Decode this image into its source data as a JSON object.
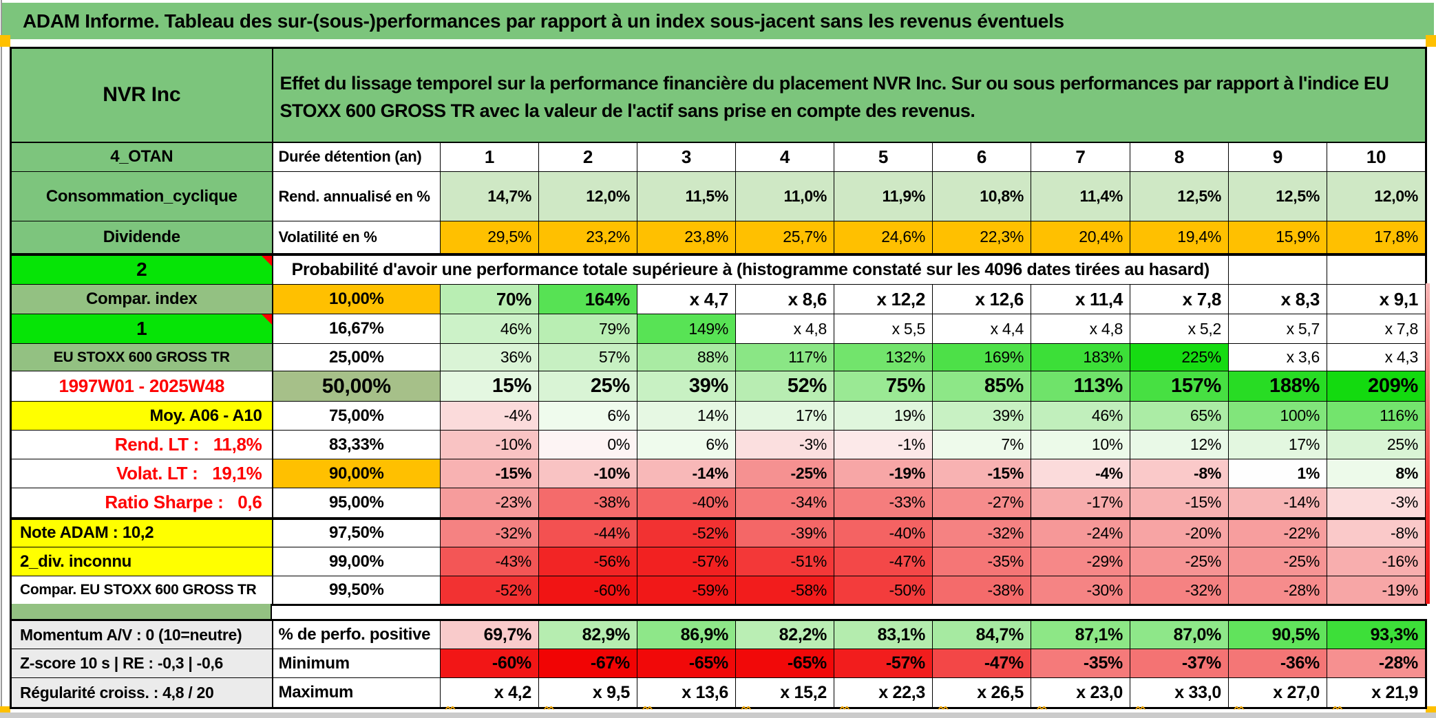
{
  "title": "ADAM Informe. Tableau des sur-(sous-)performances par rapport à un index sous-jacent sans les revenus éventuels",
  "header": {
    "asset_name": "NVR Inc",
    "description": "Effet du lissage temporel sur la performance financière du placement NVR Inc. Sur ou sous performances par rapport à l'indice EU STOXX 600 GROSS TR avec la valeur de l'actif sans prise en compte des revenus."
  },
  "colors": {
    "header_green": "#7cc57c",
    "label_green": "#93c182",
    "bright_green": "#06e406",
    "green_50": "#a6c089",
    "orange": "#ffc000",
    "yellow": "#ffff00",
    "gray_label": "#ebebeb",
    "red_text": "#fe0000",
    "marker_orange": "#ffc000"
  },
  "rows": [
    {
      "left": {
        "text": "4_OTAN",
        "bg": "#7dc57d"
      },
      "head": {
        "text": "Durée détention (an)",
        "align": "left"
      },
      "values": [
        "1",
        "2",
        "3",
        "4",
        "5",
        "6",
        "7",
        "8",
        "9",
        "10"
      ],
      "bgs": [
        "#ffffff",
        "#ffffff",
        "#ffffff",
        "#ffffff",
        "#ffffff",
        "#ffffff",
        "#ffffff",
        "#ffffff",
        "#ffffff",
        "#ffffff"
      ],
      "bold": true
    },
    {
      "left": {
        "text": "Consommation_cyclique",
        "bg": "#7dc57d"
      },
      "head": {
        "text": "Rend. annualisé en %",
        "align": "left"
      },
      "values": [
        "14,7%",
        "12,0%",
        "11,5%",
        "11,0%",
        "11,9%",
        "10,8%",
        "11,4%",
        "12,5%",
        "12,5%",
        "12,0%"
      ],
      "bgs": [
        "#cfe8c5",
        "#cfe8c5",
        "#cfe8c5",
        "#cfe8c5",
        "#cfe8c5",
        "#cfe8c5",
        "#cfe8c5",
        "#cfe8c5",
        "#cfe8c5",
        "#cfe8c5"
      ],
      "bold": true
    },
    {
      "left": {
        "text": "Dividende",
        "bg": "#7dc57d"
      },
      "head": {
        "text": "Volatilité en %",
        "align": "left"
      },
      "values": [
        "29,5%",
        "23,2%",
        "23,8%",
        "25,7%",
        "24,6%",
        "22,3%",
        "20,4%",
        "19,4%",
        "15,9%",
        "17,8%"
      ],
      "bgs": [
        "#ffc000",
        "#ffc000",
        "#ffc000",
        "#ffc000",
        "#ffc000",
        "#ffc000",
        "#ffc000",
        "#ffc000",
        "#ffc000",
        "#ffc000"
      ],
      "bold": false
    },
    {
      "left": {
        "text": "2",
        "bg": "#06e406",
        "corner": true
      },
      "note": "Probabilité d'avoir une performance totale supérieure à (histogramme constaté sur les 4096 dates tirées au hasard)"
    },
    {
      "left": {
        "text": "Compar. index",
        "bg": "#93c182"
      },
      "head": {
        "text": "10,00%",
        "bg": "#ffc000"
      },
      "values": [
        "70%",
        "164%",
        "x 4,7",
        "x 8,6",
        "x 12,2",
        "x 12,6",
        "x 11,4",
        "x 7,8",
        "x 8,3",
        "x 9,1"
      ],
      "bgs": [
        "#b9eeb3",
        "#57e254",
        "#ffffff",
        "#ffffff",
        "#ffffff",
        "#ffffff",
        "#ffffff",
        "#ffffff",
        "#ffffff",
        "#ffffff"
      ],
      "bold": true
    },
    {
      "left": {
        "text": "1",
        "bg": "#06e406",
        "corner": true
      },
      "head": {
        "text": "16,67%"
      },
      "values": [
        "46%",
        "79%",
        "149%",
        "x 4,8",
        "x 5,5",
        "x 4,4",
        "x 4,8",
        "x 5,2",
        "x 5,7",
        "x 7,8"
      ],
      "bgs": [
        "#ccf2c8",
        "#b9eeb3",
        "#58e355",
        "#ffffff",
        "#ffffff",
        "#ffffff",
        "#ffffff",
        "#ffffff",
        "#ffffff",
        "#ffffff"
      ],
      "bold": false
    },
    {
      "left": {
        "text": "EU STOXX 600 GROSS TR",
        "bg": "#93c182",
        "small": true
      },
      "head": {
        "text": "25,00%"
      },
      "values": [
        "36%",
        "57%",
        "88%",
        "117%",
        "132%",
        "169%",
        "183%",
        "225%",
        "x 3,6",
        "x 4,3"
      ],
      "bgs": [
        "#daf4d6",
        "#c7f0c2",
        "#a9eba3",
        "#8ae685",
        "#72e46c",
        "#4de048",
        "#3cdf38",
        "#16db12",
        "#ffffff",
        "#ffffff"
      ],
      "bold": false
    },
    {
      "left": {
        "text": "1997W01 - 2025W48",
        "bg": "#ffffff",
        "color": "#fe0000"
      },
      "head": {
        "text": "50,00%",
        "bg": "#a6c089",
        "big": true
      },
      "values": [
        "15%",
        "25%",
        "39%",
        "52%",
        "75%",
        "85%",
        "113%",
        "157%",
        "188%",
        "209%"
      ],
      "bgs": [
        "#e4f7e1",
        "#d9f4d5",
        "#c8f1c3",
        "#b8edb2",
        "#9ae994",
        "#8de787",
        "#6fe36a",
        "#47e042",
        "#28dc24",
        "#13da0f"
      ],
      "bold": true
    },
    {
      "left": {
        "text": "Moy. A06 - A10",
        "bg": "#ffff00",
        "align": "right"
      },
      "head": {
        "text": "75,00%"
      },
      "values": [
        "-4%",
        "6%",
        "14%",
        "17%",
        "19%",
        "39%",
        "46%",
        "65%",
        "100%",
        "116%"
      ],
      "bgs": [
        "#fbdbdb",
        "#effbed",
        "#e6f8e3",
        "#e3f7e0",
        "#e0f6dd",
        "#c8f1c3",
        "#c1efbc",
        "#abeca5",
        "#81e57b",
        "#73e46d"
      ],
      "bold": false
    },
    {
      "left": {
        "text": "Rend. LT :   11,8%",
        "bg": "#ffffff",
        "color": "#fe0000",
        "align": "right"
      },
      "head": {
        "text": "83,33%"
      },
      "values": [
        "-10%",
        "0%",
        "6%",
        "-3%",
        "-1%",
        "7%",
        "10%",
        "12%",
        "17%",
        "25%"
      ],
      "bgs": [
        "#f9c3c3",
        "#fdf4f4",
        "#effbed",
        "#fbdfdf",
        "#fce9e9",
        "#eefaeb",
        "#ecfae9",
        "#e9f9e7",
        "#e3f7e0",
        "#d9f4d5"
      ],
      "bold": false
    },
    {
      "left": {
        "text": "Volat. LT :   19,1%",
        "bg": "#ffffff",
        "color": "#fe0000",
        "align": "right"
      },
      "head": {
        "text": "90,00%",
        "bg": "#ffc000"
      },
      "values": [
        "-15%",
        "-10%",
        "-14%",
        "-25%",
        "-19%",
        "-15%",
        "-4%",
        "-8%",
        "1%",
        "8%"
      ],
      "bgs": [
        "#f8b2b2",
        "#f9c3c3",
        "#f8b8b8",
        "#f59191",
        "#f7a6a6",
        "#f8b2b2",
        "#fbdbdb",
        "#fac9c9",
        "#fefefe",
        "#edfaea"
      ],
      "bold": true
    },
    {
      "left": {
        "text": "Ratio Sharpe :   0,6",
        "bg": "#ffffff",
        "color": "#fe0000",
        "align": "right"
      },
      "head": {
        "text": "95,00%"
      },
      "values": [
        "-23%",
        "-38%",
        "-40%",
        "-34%",
        "-33%",
        "-27%",
        "-17%",
        "-15%",
        "-14%",
        "-3%"
      ],
      "bgs": [
        "#f69c9c",
        "#f46b6b",
        "#f46363",
        "#f57979",
        "#f57d7d",
        "#f68c8c",
        "#f7abab",
        "#f8b2b2",
        "#f8b6b6",
        "#fbdcdc"
      ],
      "bold": false
    },
    {
      "left": {
        "text": "Note ADAM : 10,2",
        "bg": "#ffff00",
        "align": "left"
      },
      "head": {
        "text": "97,50%"
      },
      "values": [
        "-32%",
        "-44%",
        "-52%",
        "-39%",
        "-40%",
        "-32%",
        "-24%",
        "-20%",
        "-22%",
        "-8%"
      ],
      "bgs": [
        "#f58282",
        "#f35151",
        "#f23232",
        "#f46767",
        "#f46363",
        "#f58282",
        "#f69898",
        "#f7a4a4",
        "#f79e9e",
        "#fac9c9"
      ],
      "bold": false
    },
    {
      "left": {
        "text": "2_div. inconnu",
        "bg": "#ffff00",
        "align": "left"
      },
      "head": {
        "text": "99,00%"
      },
      "values": [
        "-43%",
        "-56%",
        "-57%",
        "-51%",
        "-47%",
        "-35%",
        "-29%",
        "-25%",
        "-25%",
        "-16%"
      ],
      "bgs": [
        "#f35656",
        "#f22525",
        "#f22121",
        "#f33838",
        "#f34848",
        "#f57676",
        "#f68888",
        "#f69494",
        "#f69494",
        "#f8aeae"
      ],
      "bold": false
    },
    {
      "left": {
        "text": "Compar. EU STOXX 600 GROSS TR",
        "bg": "#ffffff",
        "align": "left",
        "small": true
      },
      "head": {
        "text": "99,50%"
      },
      "values": [
        "-52%",
        "-60%",
        "-59%",
        "-58%",
        "-50%",
        "-38%",
        "-30%",
        "-32%",
        "-28%",
        "-19%"
      ],
      "bgs": [
        "#f23232",
        "#f11414",
        "#f11818",
        "#f21c1c",
        "#f33c3c",
        "#f46b6b",
        "#f58484",
        "#f58282",
        "#f68c8c",
        "#f7a6a6"
      ],
      "bold": false
    },
    {
      "left": {
        "text": "Momentum A/V : 0 (10=neutre)",
        "bg": "#ebebeb",
        "align": "left"
      },
      "head": {
        "text": "% de perfo. positive",
        "align": "left"
      },
      "values": [
        "69,7%",
        "82,9%",
        "86,9%",
        "82,2%",
        "83,1%",
        "84,7%",
        "87,1%",
        "87,0%",
        "90,5%",
        "93,3%"
      ],
      "bgs": [
        "#f9cbcb",
        "#b6edb0",
        "#8ee789",
        "#baeeb4",
        "#b4ecae",
        "#a6eaa1",
        "#8de786",
        "#8ee789",
        "#61e35c",
        "#3ddf39"
      ],
      "bold": true
    },
    {
      "left": {
        "text": "Z-score 10 s | RE : -0,3 | -0,6",
        "bg": "#ebebeb",
        "align": "left"
      },
      "head": {
        "text": "Minimum",
        "align": "left"
      },
      "values": [
        "-60%",
        "-67%",
        "-65%",
        "-65%",
        "-57%",
        "-47%",
        "-35%",
        "-37%",
        "-36%",
        "-28%"
      ],
      "bgs": [
        "#f21616",
        "#f10404",
        "#f10909",
        "#f10909",
        "#f21d1d",
        "#f34747",
        "#f57a7a",
        "#f47373",
        "#f47676",
        "#f69090"
      ],
      "bold": true
    },
    {
      "left": {
        "text": "Régularité croiss. : 4,8 / 20",
        "bg": "#ebebeb",
        "align": "left"
      },
      "head": {
        "text": "Maximum",
        "align": "left"
      },
      "values": [
        "x 4,2",
        "x 9,5",
        "x 13,6",
        "x 15,2",
        "x 22,3",
        "x 26,5",
        "x 23,0",
        "x 33,0",
        "x 27,0",
        "x 21,9"
      ],
      "bgs": [
        "#ffffff",
        "#ffffff",
        "#ffffff",
        "#ffffff",
        "#ffffff",
        "#ffffff",
        "#ffffff",
        "#ffffff",
        "#ffffff",
        "#ffffff"
      ],
      "bold": true
    }
  ]
}
